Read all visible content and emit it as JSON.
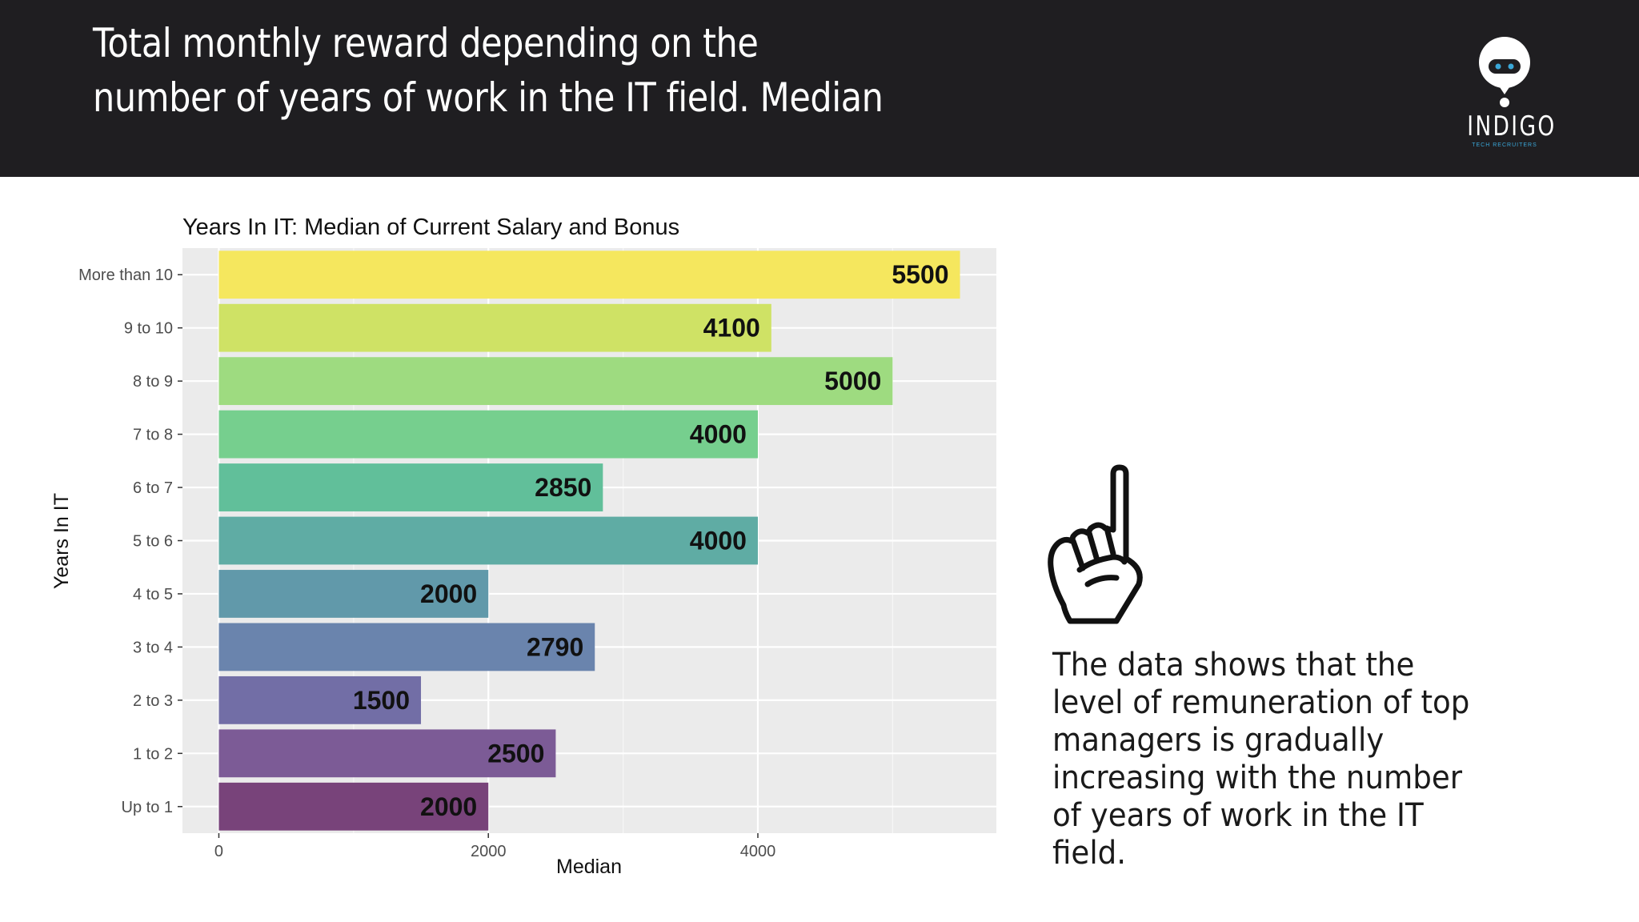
{
  "header": {
    "title": "Total monthly reward depending on the number of years of work in the IT field. Median",
    "logo_text": "INDIGO",
    "logo_tagline": "TECH RECRUITERS"
  },
  "side_note": "The data shows that the level of remuneration of top managers is gradually increasing with the number of years of work in the IT field.",
  "icons": {
    "logo": "robot-logo-icon",
    "hand": "hand-pointing-up-icon"
  },
  "chart_data": {
    "type": "bar",
    "orientation": "horizontal",
    "title": "Years In IT: Median of Current Salary and Bonus",
    "xlabel": "Median",
    "ylabel": "Years In IT",
    "categories": [
      "Up to 1",
      "1 to 2",
      "2 to 3",
      "3 to 4",
      "4 to 5",
      "5 to 6",
      "6 to 7",
      "7 to 8",
      "8 to 9",
      "9 to 10",
      "More than 10"
    ],
    "values": [
      2000,
      2500,
      1500,
      2790,
      2000,
      4000,
      2850,
      4000,
      5000,
      4100,
      5500
    ],
    "colors": [
      "#78437a",
      "#7c5b96",
      "#726ea6",
      "#6a84ad",
      "#6199aa",
      "#5faca4",
      "#61bf9a",
      "#76cf8e",
      "#9edb80",
      "#cfe265",
      "#f5e75e"
    ],
    "xticks": [
      0,
      2000,
      4000
    ],
    "xlim": [
      -270,
      5770
    ],
    "grid": true,
    "panel_background": "#ebebeb",
    "label_color": "#111111"
  }
}
